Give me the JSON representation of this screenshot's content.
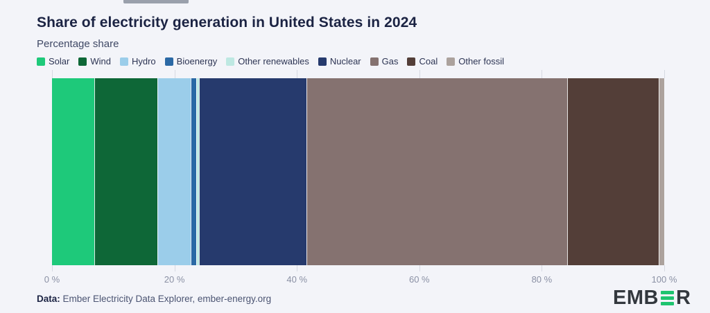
{
  "page": {
    "background_color": "#f3f4f9"
  },
  "topbar": {
    "name": "scrollbar-fragment"
  },
  "chart_data": {
    "type": "bar",
    "variant": "stacked-horizontal-single-bar",
    "title": "Share of electricity generation in United States in 2024",
    "subtitle_unit": "Percentage share",
    "xlim": [
      0,
      100
    ],
    "x_tick_labels": [
      "0 %",
      "20 %",
      "40 %",
      "60 %",
      "80 %",
      "100 %"
    ],
    "x_tick_values": [
      0,
      20,
      40,
      60,
      80,
      100
    ],
    "grid": "tick-marks-above-and-below-bar",
    "legend_position": "top",
    "series": [
      {
        "name": "Solar",
        "value": 6.9,
        "color": "#1ec97a"
      },
      {
        "name": "Wind",
        "value": 10.3,
        "color": "#0e6737"
      },
      {
        "name": "Hydro",
        "value": 5.4,
        "color": "#9bcdea"
      },
      {
        "name": "Bioenergy",
        "value": 1.0,
        "color": "#2b69a5"
      },
      {
        "name": "Other renewables",
        "value": 0.4,
        "color": "#bee8e2"
      },
      {
        "name": "Nuclear",
        "value": 17.6,
        "color": "#263a6d"
      },
      {
        "name": "Gas",
        "value": 42.6,
        "color": "#857270"
      },
      {
        "name": "Coal",
        "value": 14.9,
        "color": "#533e38"
      },
      {
        "name": "Other fossil",
        "value": 0.9,
        "color": "#aca29d"
      }
    ]
  },
  "footer": {
    "data_label": "Data:",
    "data_text": " Ember Electricity Data Explorer, ember-energy.org",
    "logo": {
      "prefix": "EMB",
      "suffix": "R",
      "bars_icon": "ember-green-bars-e",
      "green": "#1ec46f"
    }
  }
}
